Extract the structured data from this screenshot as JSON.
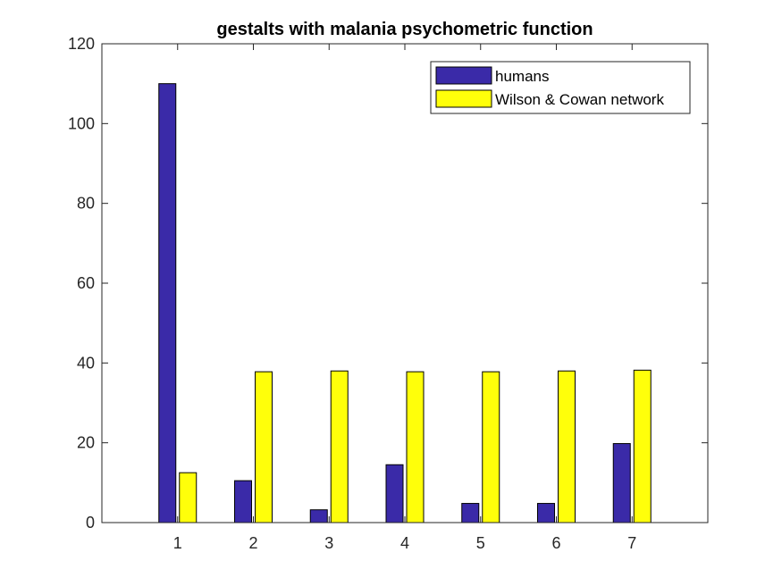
{
  "chart_data": {
    "type": "bar",
    "title": "gestalts with malania psychometric function",
    "xlabel": "",
    "ylabel": "",
    "categories": [
      "1",
      "2",
      "3",
      "4",
      "5",
      "6",
      "7"
    ],
    "series": [
      {
        "name": "humans",
        "color": "#3a2aa8",
        "values": [
          110,
          10.5,
          3.2,
          14.5,
          4.8,
          4.8,
          19.8
        ]
      },
      {
        "name": "Wilson & Cowan network",
        "color": "#ffff0a",
        "values": [
          12.5,
          37.8,
          38.0,
          37.8,
          37.8,
          38.0,
          38.2
        ]
      }
    ],
    "ylim": [
      0,
      120
    ],
    "yticks": [
      0,
      20,
      40,
      60,
      80,
      100,
      120
    ],
    "xlim": [
      0,
      8
    ],
    "grid": false,
    "legend_position": "top-right"
  }
}
